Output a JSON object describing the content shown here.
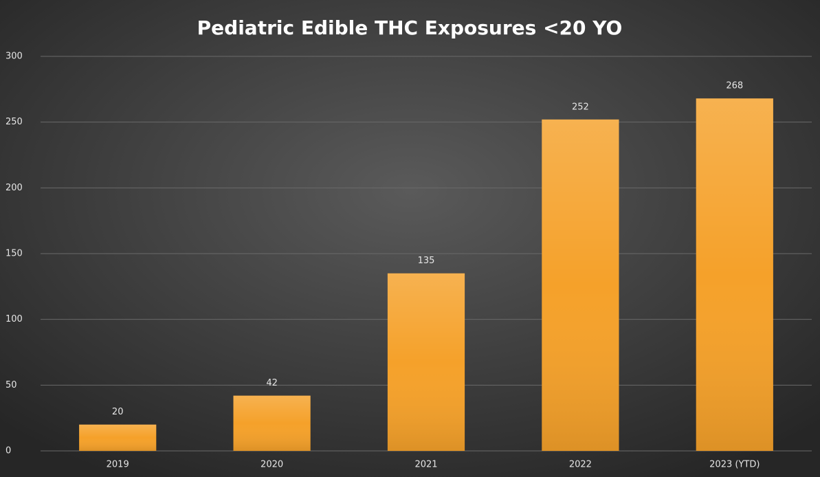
{
  "chart_data": {
    "type": "bar",
    "title": "Pediatric Edible THC Exposures <20 YO",
    "categories": [
      "2019",
      "2020",
      "2021",
      "2022",
      "2023 (YTD)"
    ],
    "values": [
      20,
      42,
      135,
      252,
      268
    ],
    "color": "#f5a12a",
    "ylim": [
      0,
      300
    ],
    "yticks": [
      0,
      50,
      100,
      150,
      200,
      250,
      300
    ],
    "grid": true
  }
}
